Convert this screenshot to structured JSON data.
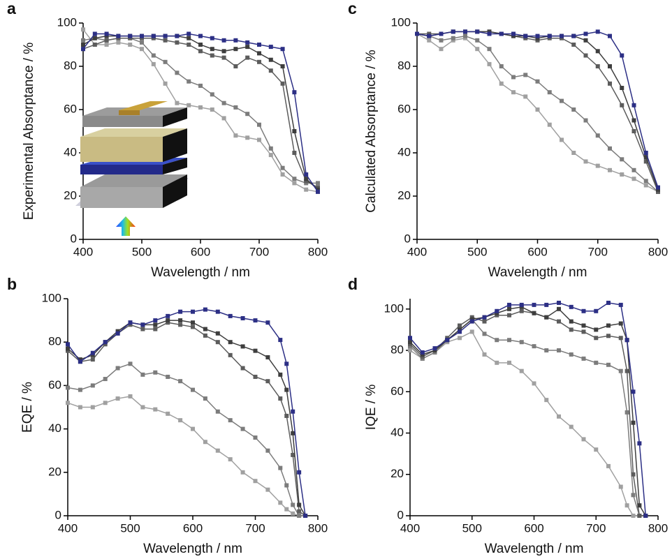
{
  "chart_data": [
    {
      "type": "line",
      "panel": "a",
      "x_label": "Wavelength / nm",
      "y_label": "Experimental Absorptance / %",
      "x": [
        400,
        420,
        440,
        460,
        480,
        500,
        520,
        540,
        560,
        580,
        600,
        620,
        640,
        660,
        680,
        700,
        720,
        740,
        760,
        780,
        800
      ],
      "xlim": [
        400,
        800
      ],
      "xticks": [
        400,
        500,
        600,
        700,
        800
      ],
      "ylim": [
        0,
        100
      ],
      "yticks": [
        0,
        20,
        40,
        60,
        80,
        100
      ],
      "series": [
        {
          "color": "#2c2f85",
          "values": [
            88,
            95,
            95,
            94,
            94,
            94,
            94,
            94,
            94,
            95,
            94,
            93,
            92,
            92,
            91,
            90,
            89,
            88,
            68,
            30,
            22
          ]
        },
        {
          "color": "#3e3e3e",
          "values": [
            90,
            93,
            94,
            94,
            94,
            94,
            94,
            94,
            94,
            93,
            90,
            88,
            87,
            88,
            89,
            86,
            83,
            80,
            50,
            28,
            23
          ]
        },
        {
          "color": "#5c5c5c",
          "values": [
            88,
            90,
            92,
            93,
            93,
            93,
            93,
            92,
            91,
            90,
            87,
            85,
            84,
            80,
            84,
            82,
            78,
            72,
            40,
            27,
            24
          ]
        },
        {
          "color": "#7c7c7c",
          "values": [
            92,
            93,
            92,
            93,
            93,
            91,
            85,
            82,
            77,
            73,
            71,
            67,
            63,
            61,
            58,
            53,
            42,
            33,
            28,
            26,
            26
          ]
        },
        {
          "color": "#a0a0a0",
          "values": [
            97,
            90,
            90,
            91,
            90,
            88,
            81,
            72,
            63,
            62,
            61,
            60,
            56,
            48,
            47,
            46,
            39,
            30,
            26,
            23,
            22
          ]
        }
      ]
    },
    {
      "type": "line",
      "panel": "c",
      "x_label": "Wavelength / nm",
      "y_label": "Calculated Absorptance / %",
      "x": [
        400,
        420,
        440,
        460,
        480,
        500,
        520,
        540,
        560,
        580,
        600,
        620,
        640,
        660,
        680,
        700,
        720,
        740,
        760,
        780,
        800
      ],
      "xlim": [
        400,
        800
      ],
      "xticks": [
        400,
        500,
        600,
        700,
        800
      ],
      "ylim": [
        0,
        100
      ],
      "yticks": [
        0,
        20,
        40,
        60,
        80,
        100
      ],
      "series": [
        {
          "color": "#2c2f85",
          "values": [
            95,
            94,
            95,
            96,
            96,
            96,
            95,
            95,
            95,
            94,
            94,
            94,
            94,
            94,
            95,
            96,
            94,
            85,
            62,
            40,
            24
          ]
        },
        {
          "color": "#3e3e3e",
          "values": [
            95,
            94,
            95,
            96,
            96,
            96,
            96,
            95,
            94,
            94,
            93,
            94,
            94,
            94,
            92,
            87,
            80,
            70,
            55,
            38,
            23
          ]
        },
        {
          "color": "#5c5c5c",
          "values": [
            95,
            95,
            95,
            96,
            96,
            96,
            96,
            95,
            94,
            93,
            92,
            93,
            93,
            90,
            85,
            80,
            72,
            62,
            50,
            36,
            22
          ]
        },
        {
          "color": "#7c7c7c",
          "values": [
            95,
            94,
            92,
            93,
            94,
            92,
            88,
            80,
            75,
            76,
            73,
            68,
            64,
            60,
            55,
            48,
            42,
            37,
            32,
            27,
            22
          ]
        },
        {
          "color": "#a0a0a0",
          "values": [
            95,
            92,
            88,
            92,
            93,
            88,
            81,
            72,
            68,
            66,
            60,
            53,
            46,
            40,
            36,
            34,
            32,
            30,
            28,
            25,
            22
          ]
        }
      ]
    },
    {
      "type": "line",
      "panel": "b",
      "x_label": "Wavelength / nm",
      "y_label": "EQE / %",
      "x": [
        400,
        420,
        440,
        460,
        480,
        500,
        520,
        540,
        560,
        580,
        600,
        620,
        640,
        660,
        680,
        700,
        720,
        740,
        750,
        760,
        770,
        780
      ],
      "xlim": [
        400,
        800
      ],
      "xticks": [
        400,
        500,
        600,
        700,
        800
      ],
      "ylim": [
        0,
        100
      ],
      "yticks": [
        0,
        20,
        40,
        60,
        80,
        100
      ],
      "series": [
        {
          "color": "#2c2f85",
          "values": [
            79,
            71,
            75,
            80,
            84,
            89,
            88,
            90,
            92,
            94,
            94,
            95,
            94,
            92,
            91,
            90,
            89,
            81,
            70,
            48,
            20,
            0
          ]
        },
        {
          "color": "#3e3e3e",
          "values": [
            77,
            72,
            74,
            80,
            85,
            89,
            88,
            88,
            90,
            90,
            89,
            86,
            84,
            80,
            78,
            76,
            73,
            65,
            58,
            38,
            5,
            0
          ]
        },
        {
          "color": "#5c5c5c",
          "values": [
            76,
            71,
            72,
            79,
            84,
            88,
            86,
            86,
            89,
            88,
            87,
            83,
            80,
            74,
            68,
            64,
            62,
            54,
            46,
            28,
            2,
            0
          ]
        },
        {
          "color": "#7c7c7c",
          "values": [
            59,
            58,
            60,
            63,
            68,
            70,
            65,
            66,
            64,
            62,
            58,
            54,
            48,
            44,
            40,
            36,
            30,
            22,
            14,
            5,
            0,
            0
          ]
        },
        {
          "color": "#a0a0a0",
          "values": [
            52,
            50,
            50,
            52,
            54,
            55,
            50,
            49,
            47,
            44,
            40,
            34,
            30,
            26,
            20,
            16,
            12,
            6,
            3,
            1,
            0,
            0
          ]
        }
      ]
    },
    {
      "type": "line",
      "panel": "d",
      "x_label": "Wavelength / nm",
      "y_label": "IQE / %",
      "x": [
        400,
        420,
        440,
        460,
        480,
        500,
        520,
        540,
        560,
        580,
        600,
        620,
        640,
        660,
        680,
        700,
        720,
        740,
        750,
        760,
        770,
        780
      ],
      "xlim": [
        400,
        800
      ],
      "xticks": [
        400,
        500,
        600,
        700,
        800
      ],
      "ylim": [
        0,
        105
      ],
      "yticks": [
        0,
        20,
        40,
        60,
        80,
        100
      ],
      "series": [
        {
          "color": "#2c2f85",
          "values": [
            86,
            79,
            81,
            85,
            89,
            94,
            96,
            99,
            102,
            102,
            102,
            102,
            103,
            101,
            99,
            99,
            103,
            102,
            85,
            60,
            35,
            0
          ]
        },
        {
          "color": "#3e3e3e",
          "values": [
            84,
            78,
            80,
            85,
            90,
            95,
            96,
            98,
            100,
            101,
            98,
            96,
            100,
            94,
            92,
            90,
            92,
            93,
            85,
            45,
            5,
            0
          ]
        },
        {
          "color": "#5c5c5c",
          "values": [
            83,
            77,
            80,
            86,
            92,
            96,
            94,
            97,
            97,
            99,
            98,
            96,
            94,
            90,
            89,
            86,
            87,
            86,
            70,
            20,
            0,
            0
          ]
        },
        {
          "color": "#7c7c7c",
          "values": [
            82,
            76,
            79,
            85,
            90,
            95,
            88,
            85,
            85,
            84,
            82,
            80,
            80,
            78,
            76,
            74,
            73,
            70,
            50,
            10,
            0,
            0
          ]
        },
        {
          "color": "#a0a0a0",
          "values": [
            80,
            76,
            79,
            84,
            86,
            89,
            78,
            74,
            74,
            70,
            64,
            56,
            48,
            43,
            37,
            32,
            24,
            14,
            5,
            0,
            0,
            0
          ]
        }
      ]
    }
  ]
}
